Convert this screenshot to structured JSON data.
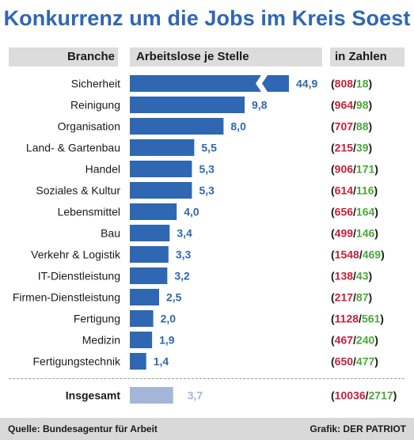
{
  "title": "Konkurrenz um die Jobs im Kreis Soest",
  "headers": {
    "branche": "Branche",
    "arbeitslose": "Arbeitslose je Stelle",
    "zahlen": "in Zahlen"
  },
  "colors": {
    "bar": "#2f67b2",
    "total_bar": "#a4b6d8",
    "red": "#c8203b",
    "green": "#4aa83a",
    "title": "#2f67b2"
  },
  "chart_data": {
    "type": "bar",
    "orientation": "horizontal",
    "axis_break": "Sicherheit bar is truncated",
    "categories": [
      "Sicherheit",
      "Reinigung",
      "Organisation",
      "Land- & Gartenbau",
      "Handel",
      "Soziales & Kultur",
      "Lebensmittel",
      "Bau",
      "Verkehr & Logistik",
      "IT-Dienstleistung",
      "Firmen-Dienstleistung",
      "Fertigung",
      "Medizin",
      "Fertigungstechnik"
    ],
    "values": [
      44.9,
      9.8,
      8.0,
      5.5,
      5.3,
      5.3,
      4.0,
      3.4,
      3.3,
      3.2,
      2.5,
      2.0,
      1.9,
      1.4
    ],
    "value_labels": [
      "44,9",
      "9,8",
      "8,0",
      "5,5",
      "5,3",
      "5,3",
      "4,0",
      "3,4",
      "3,3",
      "3,2",
      "2,5",
      "2,0",
      "1,9",
      "1,4"
    ],
    "arbeitslose": [
      "808",
      "964",
      "707",
      "215",
      "906",
      "614",
      "656",
      "499",
      "1548",
      "138",
      "217",
      "1128",
      "467",
      "650"
    ],
    "stellen": [
      "18",
      "98",
      "88",
      "39",
      "171",
      "116",
      "164",
      "146",
      "469",
      "43",
      "87",
      "561",
      "240",
      "477"
    ],
    "total": {
      "label": "Insgesamt",
      "value": 3.7,
      "value_label": "3,7",
      "arbeitslose": "10036",
      "stellen": "2717"
    }
  },
  "footer": {
    "source": "Quelle: Bundesagentur für Arbeit",
    "credit": "Grafik: DER PATRIOT"
  }
}
